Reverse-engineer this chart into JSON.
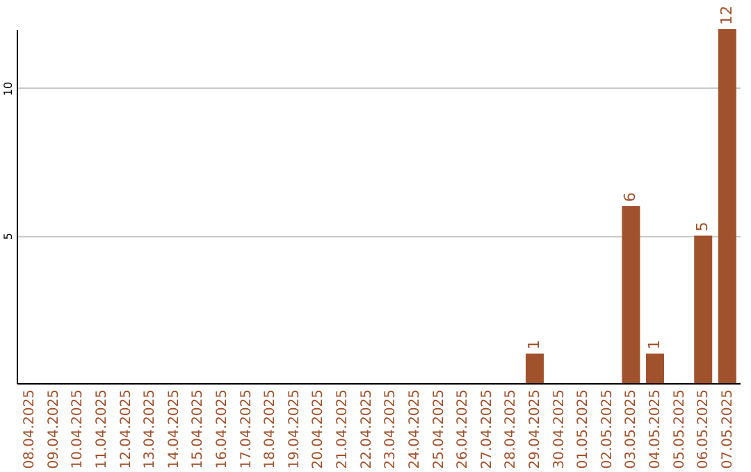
{
  "chart_data": {
    "type": "bar",
    "categories": [
      "08.04.2025",
      "09.04.2025",
      "10.04.2025",
      "11.04.2025",
      "12.04.2025",
      "13.04.2025",
      "14.04.2025",
      "15.04.2025",
      "16.04.2025",
      "17.04.2025",
      "18.04.2025",
      "19.04.2025",
      "20.04.2025",
      "21.04.2025",
      "22.04.2025",
      "23.04.2025",
      "24.04.2025",
      "25.04.2025",
      "26.04.2025",
      "27.04.2025",
      "28.04.2025",
      "29.04.2025",
      "30.04.2025",
      "01.05.2025",
      "02.05.2025",
      "03.05.2025",
      "04.05.2025",
      "05.05.2025",
      "06.05.2025",
      "07.05.2025"
    ],
    "values": [
      0,
      0,
      0,
      0,
      0,
      0,
      0,
      0,
      0,
      0,
      0,
      0,
      0,
      0,
      0,
      0,
      0,
      0,
      0,
      0,
      0,
      1,
      0,
      0,
      0,
      6,
      1,
      0,
      5,
      12
    ],
    "value_labels": [
      null,
      null,
      null,
      null,
      null,
      null,
      null,
      null,
      null,
      null,
      null,
      null,
      null,
      null,
      null,
      null,
      null,
      null,
      null,
      null,
      null,
      "1",
      null,
      null,
      null,
      "6",
      "1",
      null,
      "5",
      "12"
    ],
    "color": "#a0522d",
    "ylim": [
      0,
      12
    ],
    "yticks": [
      5,
      10
    ],
    "grid": "y"
  }
}
